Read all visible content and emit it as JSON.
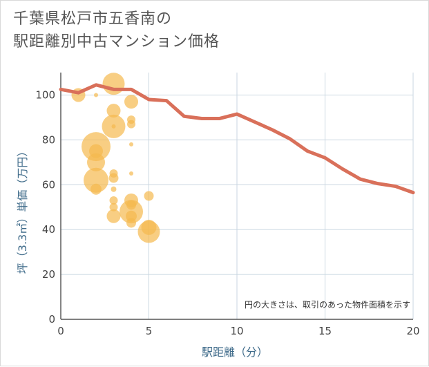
{
  "title_line1": "千葉県松戸市五香南の",
  "title_line2": "駅距離別中古マンション価格",
  "colors": {
    "line": "#d9705a",
    "bubble": "#f5b94e",
    "grid": "#c9d6e0",
    "axis_text": "#3f6b8a"
  },
  "chart_data": {
    "type": "scatter",
    "xlabel": "駅距離（分）",
    "ylabel": "坪（3.3㎡）単価（万円）",
    "note": "円の大きさは、取引のあった物件面積を示す",
    "xlim": [
      0,
      20
    ],
    "ylim": [
      0,
      110
    ],
    "xticks": [
      "0",
      "5",
      "10",
      "15",
      "20"
    ],
    "yticks": [
      "0",
      "20",
      "40",
      "60",
      "80",
      "100"
    ],
    "line": {
      "x": [
        0,
        1,
        2,
        3,
        4,
        5,
        6,
        7,
        8,
        9,
        10,
        11,
        12,
        13,
        14,
        15,
        16,
        17,
        18,
        19,
        20
      ],
      "y": [
        102.5,
        101,
        104.5,
        102.5,
        102.5,
        98,
        97.5,
        90.5,
        89.5,
        89.5,
        91.5,
        88,
        84.5,
        80.5,
        75,
        72,
        67,
        62.5,
        60.5,
        59.3,
        56.5
      ]
    },
    "bubbles": [
      {
        "x": 1,
        "y": 100,
        "r": 10
      },
      {
        "x": 2,
        "y": 100,
        "r": 3
      },
      {
        "x": 3,
        "y": 105,
        "r": 16
      },
      {
        "x": 3,
        "y": 93,
        "r": 10
      },
      {
        "x": 3,
        "y": 86,
        "r": 17
      },
      {
        "x": 3,
        "y": 86,
        "r": 3
      },
      {
        "x": 4,
        "y": 97,
        "r": 10
      },
      {
        "x": 4,
        "y": 89,
        "r": 6
      },
      {
        "x": 4,
        "y": 87,
        "r": 6
      },
      {
        "x": 4,
        "y": 78,
        "r": 3
      },
      {
        "x": 2,
        "y": 77,
        "r": 21
      },
      {
        "x": 2,
        "y": 75,
        "r": 10
      },
      {
        "x": 2,
        "y": 70,
        "r": 13
      },
      {
        "x": 3,
        "y": 65,
        "r": 6
      },
      {
        "x": 3,
        "y": 63,
        "r": 7
      },
      {
        "x": 4,
        "y": 65,
        "r": 3
      },
      {
        "x": 2,
        "y": 62,
        "r": 18
      },
      {
        "x": 2,
        "y": 58,
        "r": 8
      },
      {
        "x": 3,
        "y": 58,
        "r": 4
      },
      {
        "x": 3,
        "y": 53,
        "r": 6
      },
      {
        "x": 3,
        "y": 50,
        "r": 6
      },
      {
        "x": 3,
        "y": 46,
        "r": 10
      },
      {
        "x": 4,
        "y": 53,
        "r": 10
      },
      {
        "x": 4,
        "y": 51,
        "r": 7
      },
      {
        "x": 4,
        "y": 48,
        "r": 17
      },
      {
        "x": 4,
        "y": 46,
        "r": 8
      },
      {
        "x": 4,
        "y": 43,
        "r": 7
      },
      {
        "x": 5,
        "y": 55,
        "r": 7
      },
      {
        "x": 5,
        "y": 41,
        "r": 11
      },
      {
        "x": 5,
        "y": 39,
        "r": 16
      }
    ]
  }
}
